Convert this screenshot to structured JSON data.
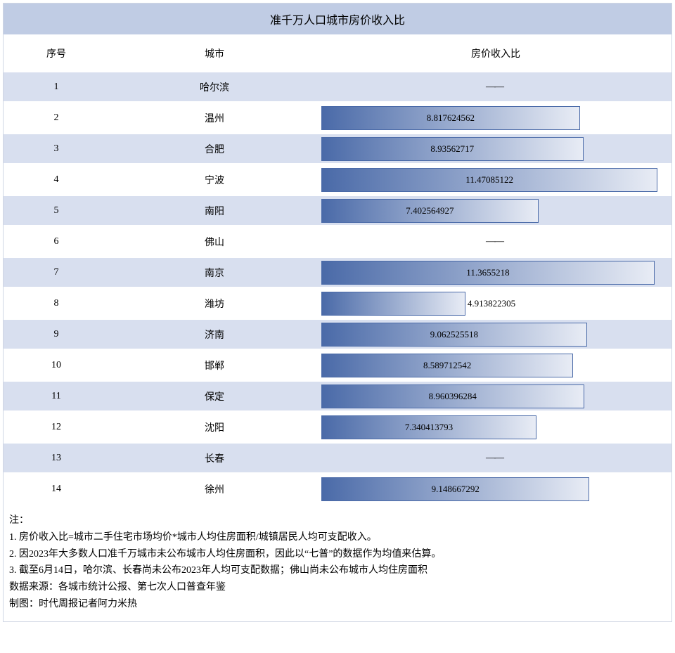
{
  "title": "准千万人口城市房价收入比",
  "headers": {
    "seq": "序号",
    "city": "城市",
    "ratio": "房价收入比"
  },
  "chart": {
    "max_value": 11.8,
    "bar_gradient_start": "#4a6aa8",
    "bar_gradient_end": "#e8ecf5",
    "bar_border": "#4a6aa8",
    "row_odd_bg": "#d8dfef",
    "row_even_bg": "#ffffff",
    "title_bg": "#c0cce4",
    "no_data_text": "——"
  },
  "rows": [
    {
      "seq": "1",
      "city": "哈尔滨",
      "value": null,
      "label": "——"
    },
    {
      "seq": "2",
      "city": "温州",
      "value": 8.817624562,
      "label": "8.817624562"
    },
    {
      "seq": "3",
      "city": "合肥",
      "value": 8.93562717,
      "label": "8.93562717"
    },
    {
      "seq": "4",
      "city": "宁波",
      "value": 11.47085122,
      "label": "11.47085122"
    },
    {
      "seq": "5",
      "city": "南阳",
      "value": 7.402564927,
      "label": "7.402564927"
    },
    {
      "seq": "6",
      "city": "佛山",
      "value": null,
      "label": "——"
    },
    {
      "seq": "7",
      "city": "南京",
      "value": 11.3655218,
      "label": "11.3655218"
    },
    {
      "seq": "8",
      "city": "潍坊",
      "value": 4.913822305,
      "label": "4.913822305"
    },
    {
      "seq": "9",
      "city": "济南",
      "value": 9.062525518,
      "label": "9.062525518"
    },
    {
      "seq": "10",
      "city": "邯郸",
      "value": 8.589712542,
      "label": "8.589712542"
    },
    {
      "seq": "11",
      "city": "保定",
      "value": 8.960396284,
      "label": "8.960396284"
    },
    {
      "seq": "12",
      "city": "沈阳",
      "value": 7.340413793,
      "label": "7.340413793"
    },
    {
      "seq": "13",
      "city": "长春",
      "value": null,
      "label": "——"
    },
    {
      "seq": "14",
      "city": "徐州",
      "value": 9.148667292,
      "label": "9.148667292"
    }
  ],
  "notes": {
    "header": "注：",
    "lines": [
      "1. 房价收入比=城市二手住宅市场均价*城市人均住房面积/城镇居民人均可支配收入。",
      "2. 因2023年大多数人口准千万城市未公布城市人均住房面积，因此以“七普”的数据作为均值来估算。",
      "3. 截至6月14日，哈尔滨、长春尚未公布2023年人均可支配数据；佛山尚未公布城市人均住房面积"
    ],
    "source": "数据来源：各城市统计公报、第七次人口普查年鉴",
    "credit": "制图：时代周报记者阿力米热"
  }
}
